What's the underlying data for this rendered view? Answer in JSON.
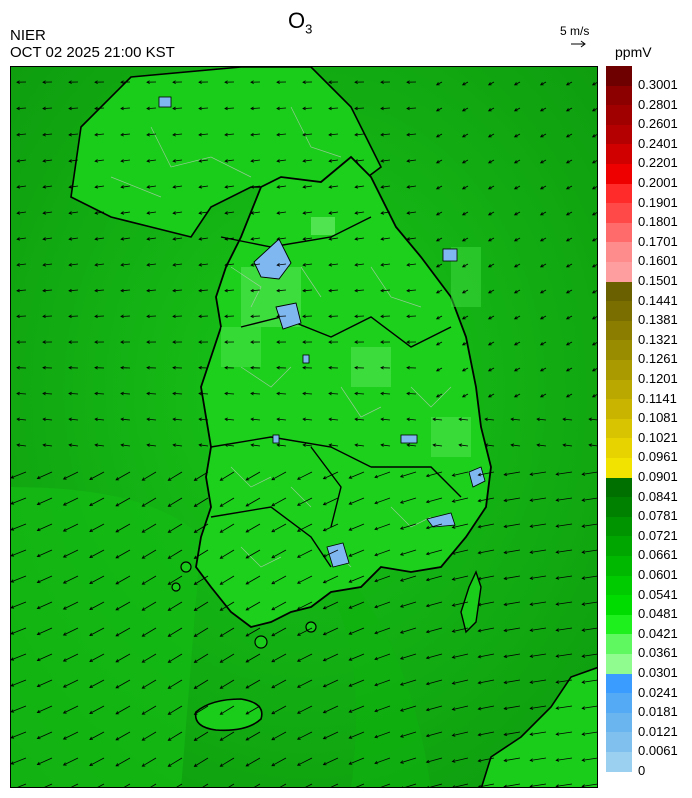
{
  "header": {
    "org": "NIER",
    "timestamp": "OCT 02 2025 21:00 KST",
    "title_main": "O",
    "title_sub": "3",
    "wind_ref_label": "5 m/s",
    "unit": "ppmV"
  },
  "legend": {
    "labels": [
      "0.3001",
      "0.2801",
      "0.2601",
      "0.2401",
      "0.2201",
      "0.2001",
      "0.1901",
      "0.1801",
      "0.1701",
      "0.1601",
      "0.1501",
      "0.1441",
      "0.1381",
      "0.1321",
      "0.1261",
      "0.1201",
      "0.1141",
      "0.1081",
      "0.1021",
      "0.0961",
      "0.0901",
      "0.0841",
      "0.0781",
      "0.0721",
      "0.0661",
      "0.0601",
      "0.0541",
      "0.0481",
      "0.0421",
      "0.0361",
      "0.0301",
      "0.0241",
      "0.0181",
      "0.0121",
      "0.0061",
      "0"
    ],
    "colors": [
      "#6e0000",
      "#8c0000",
      "#a00000",
      "#b40000",
      "#d00000",
      "#ee0000",
      "#ff2a2a",
      "#ff4848",
      "#ff6a6a",
      "#ff8c8c",
      "#ff9e9e",
      "#6b6000",
      "#7a6e00",
      "#8a7d00",
      "#9a8c00",
      "#aa9a00",
      "#baa800",
      "#c9b500",
      "#d8c400",
      "#e6d300",
      "#f2e400",
      "#007000",
      "#008200",
      "#009400",
      "#00a600",
      "#00b800",
      "#00ca00",
      "#00dc00",
      "#1ef01e",
      "#60f860",
      "#90fc90",
      "#3a9cff",
      "#55aaf5",
      "#6ab5f0",
      "#80c0ee",
      "#9cd0f0"
    ]
  },
  "colors": {
    "sea_green": "#12ad12",
    "land_green": "#1cd01c",
    "low_ozone_blue": "#7fb8f0",
    "boundary": "#000000"
  }
}
